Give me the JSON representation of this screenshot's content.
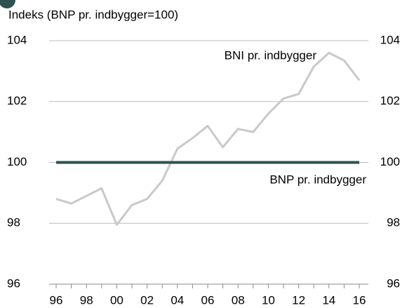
{
  "chart_data": {
    "type": "line",
    "ylabel": "Indeks (BNP pr. indbygger=100)",
    "categories": [
      "96",
      null,
      "98",
      null,
      "00",
      null,
      "02",
      null,
      "04",
      null,
      "06",
      null,
      "08",
      null,
      "10",
      null,
      "12",
      null,
      "14",
      null,
      "16"
    ],
    "series": [
      {
        "name": "BNI pr. indbygger",
        "color": "#c9c9c9",
        "values": [
          98.8,
          98.65,
          98.9,
          99.15,
          97.95,
          98.6,
          98.8,
          99.4,
          100.45,
          100.8,
          101.2,
          100.5,
          101.1,
          101.0,
          101.6,
          102.1,
          102.25,
          103.15,
          103.6,
          103.35,
          102.7
        ]
      },
      {
        "name": "BNP pr. indbygger",
        "color": "#2e5252",
        "values": [
          100,
          100,
          100,
          100,
          100,
          100,
          100,
          100,
          100,
          100,
          100,
          100,
          100,
          100,
          100,
          100,
          100,
          100,
          100,
          100,
          100
        ]
      }
    ],
    "ylim": [
      96,
      104
    ],
    "yticks": [
      96,
      98,
      100,
      102,
      104
    ],
    "y2lim": [
      96,
      104
    ],
    "y2ticks": [
      96,
      98,
      100,
      102,
      104
    ],
    "grid": true
  }
}
